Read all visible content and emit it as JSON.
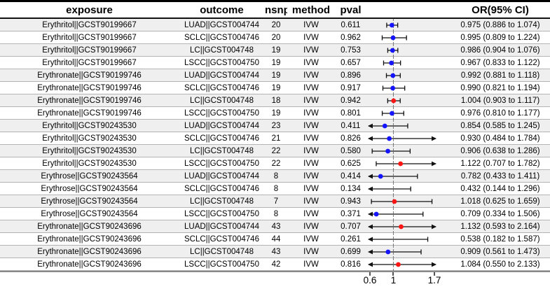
{
  "colors": {
    "marker_blue": "#1414ff",
    "marker_red": "#ff1414",
    "ci_line": "#111111",
    "reference_line": "#777777",
    "row_stripe": "#efefef",
    "axis_line": "#8a8a8a"
  },
  "table": {
    "headers": {
      "exposure": "exposure",
      "outcome": "outcome",
      "nsnp": "nsnp",
      "method": "method",
      "pval": "pval",
      "or_ci": "OR(95% CI)"
    }
  },
  "chart_data": {
    "type": "table",
    "subtype": "forest-plot",
    "columns": [
      "exposure",
      "outcome",
      "nsnp",
      "method",
      "pval",
      "OR(95% CI)"
    ],
    "axis": {
      "scale": "linear",
      "xmin": 0.6,
      "xmax": 1.7,
      "ticks": [
        "0.6",
        "1",
        "1.7"
      ],
      "tick_values": [
        0.6,
        1,
        1.7
      ],
      "reference_line": 1,
      "clip_arrows": true
    },
    "rows": [
      {
        "exposure": "Erythritol||GCST90199667",
        "outcome": "LUAD||GCST004744",
        "nsnp": "20",
        "method": "IVW",
        "pval": "0.611",
        "or": 0.975,
        "lo": 0.886,
        "hi": 1.074,
        "or_ci": "0.975 (0.886 to 1.074)",
        "marker": "blue"
      },
      {
        "exposure": "Erythritol||GCST90199667",
        "outcome": "SCLC||GCST004746",
        "nsnp": "20",
        "method": "IVW",
        "pval": "0.962",
        "or": 0.995,
        "lo": 0.809,
        "hi": 1.224,
        "or_ci": "0.995 (0.809 to 1.224)",
        "marker": "blue"
      },
      {
        "exposure": "Erythritol||GCST90199667",
        "outcome": "LC||GCST004748",
        "nsnp": "19",
        "method": "IVW",
        "pval": "0.753",
        "or": 0.986,
        "lo": 0.904,
        "hi": 1.076,
        "or_ci": "0.986 (0.904 to 1.076)",
        "marker": "blue"
      },
      {
        "exposure": "Erythritol||GCST90199667",
        "outcome": "LSCC||GCST004750",
        "nsnp": "19",
        "method": "IVW",
        "pval": "0.657",
        "or": 0.967,
        "lo": 0.833,
        "hi": 1.122,
        "or_ci": "0.967 (0.833 to 1.122)",
        "marker": "blue"
      },
      {
        "exposure": "Erythronate||GCST90199746",
        "outcome": "LUAD||GCST004744",
        "nsnp": "19",
        "method": "IVW",
        "pval": "0.896",
        "or": 0.992,
        "lo": 0.881,
        "hi": 1.118,
        "or_ci": "0.992 (0.881 to 1.118)",
        "marker": "blue"
      },
      {
        "exposure": "Erythronate||GCST90199746",
        "outcome": "SCLC||GCST004746",
        "nsnp": "19",
        "method": "IVW",
        "pval": "0.917",
        "or": 0.99,
        "lo": 0.821,
        "hi": 1.194,
        "or_ci": "0.990 (0.821 to 1.194)",
        "marker": "blue"
      },
      {
        "exposure": "Erythronate||GCST90199746",
        "outcome": "LC||GCST004748",
        "nsnp": "18",
        "method": "IVW",
        "pval": "0.942",
        "or": 1.004,
        "lo": 0.903,
        "hi": 1.117,
        "or_ci": "1.004 (0.903 to 1.117)",
        "marker": "red"
      },
      {
        "exposure": "Erythronate||GCST90199746",
        "outcome": "LSCC||GCST004750",
        "nsnp": "19",
        "method": "IVW",
        "pval": "0.801",
        "or": 0.976,
        "lo": 0.81,
        "hi": 1.177,
        "or_ci": "0.976 (0.810 to 1.177)",
        "marker": "blue"
      },
      {
        "exposure": "Erythritol||GCST90243530",
        "outcome": "LUAD||GCST004744",
        "nsnp": "23",
        "method": "IVW",
        "pval": "0.411",
        "or": 0.854,
        "lo": 0.585,
        "hi": 1.245,
        "or_ci": "0.854 (0.585 to 1.245)",
        "marker": "blue"
      },
      {
        "exposure": "Erythritol||GCST90243530",
        "outcome": "SCLC||GCST004746",
        "nsnp": "21",
        "method": "IVW",
        "pval": "0.826",
        "or": 0.93,
        "lo": 0.484,
        "hi": 1.784,
        "or_ci": "0.930 (0.484 to 1.784)",
        "marker": "blue"
      },
      {
        "exposure": "Erythritol||GCST90243530",
        "outcome": "LC||GCST004748",
        "nsnp": "22",
        "method": "IVW",
        "pval": "0.580",
        "or": 0.906,
        "lo": 0.638,
        "hi": 1.286,
        "or_ci": "0.906 (0.638 to 1.286)",
        "marker": "blue"
      },
      {
        "exposure": "Erythritol||GCST90243530",
        "outcome": "LSCC||GCST004750",
        "nsnp": "22",
        "method": "IVW",
        "pval": "0.625",
        "or": 1.122,
        "lo": 0.707,
        "hi": 1.782,
        "or_ci": "1.122 (0.707 to 1.782)",
        "marker": "red"
      },
      {
        "exposure": "Erythrose||GCST90243564",
        "outcome": "LUAD||GCST004744",
        "nsnp": "8",
        "method": "IVW",
        "pval": "0.414",
        "or": 0.782,
        "lo": 0.433,
        "hi": 1.411,
        "or_ci": "0.782 (0.433 to 1.411)",
        "marker": "blue"
      },
      {
        "exposure": "Erythrose||GCST90243564",
        "outcome": "SCLC||GCST004746",
        "nsnp": "8",
        "method": "IVW",
        "pval": "0.134",
        "or": 0.432,
        "lo": 0.144,
        "hi": 1.296,
        "or_ci": "0.432 (0.144 to 1.296)",
        "marker": "blue"
      },
      {
        "exposure": "Erythrose||GCST90243564",
        "outcome": "LC||GCST004748",
        "nsnp": "7",
        "method": "IVW",
        "pval": "0.943",
        "or": 1.018,
        "lo": 0.625,
        "hi": 1.659,
        "or_ci": "1.018 (0.625 to 1.659)",
        "marker": "red"
      },
      {
        "exposure": "Erythrose||GCST90243564",
        "outcome": "LSCC||GCST004750",
        "nsnp": "8",
        "method": "IVW",
        "pval": "0.371",
        "or": 0.709,
        "lo": 0.334,
        "hi": 1.506,
        "or_ci": "0.709 (0.334 to 1.506)",
        "marker": "blue"
      },
      {
        "exposure": "Erythronate||GCST90243696",
        "outcome": "LUAD||GCST004744",
        "nsnp": "43",
        "method": "IVW",
        "pval": "0.707",
        "or": 1.132,
        "lo": 0.593,
        "hi": 2.164,
        "or_ci": "1.132 (0.593 to 2.164)",
        "marker": "red"
      },
      {
        "exposure": "Erythronate||GCST90243696",
        "outcome": "SCLC||GCST004746",
        "nsnp": "44",
        "method": "IVW",
        "pval": "0.261",
        "or": 0.538,
        "lo": 0.182,
        "hi": 1.587,
        "or_ci": "0.538 (0.182 to 1.587)",
        "marker": "blue"
      },
      {
        "exposure": "Erythronate||GCST90243696",
        "outcome": "LC||GCST004748",
        "nsnp": "43",
        "method": "IVW",
        "pval": "0.699",
        "or": 0.909,
        "lo": 0.561,
        "hi": 1.473,
        "or_ci": "0.909 (0.561 to 1.473)",
        "marker": "blue"
      },
      {
        "exposure": "Erythronate||GCST90243696",
        "outcome": "LSCC||GCST004750",
        "nsnp": "42",
        "method": "IVW",
        "pval": "0.816",
        "or": 1.084,
        "lo": 0.55,
        "hi": 2.133,
        "or_ci": "1.084 (0.550 to 2.133)",
        "marker": "red"
      }
    ]
  }
}
